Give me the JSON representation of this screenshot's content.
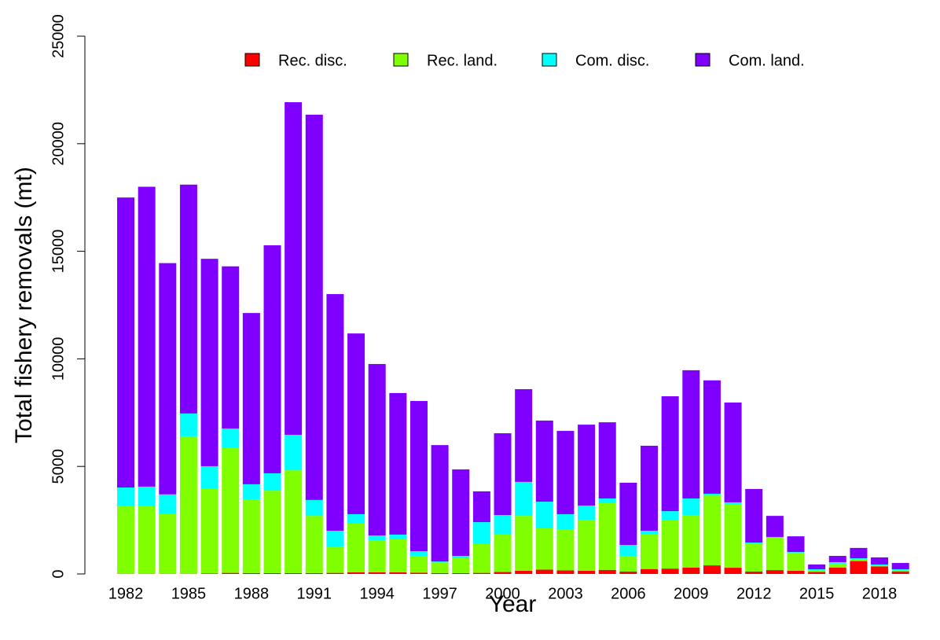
{
  "chart_data": {
    "type": "bar",
    "stacked": true,
    "xlabel": "Year",
    "ylabel": "Total fishery removals (mt)",
    "categories": [
      "1982",
      null,
      null,
      "1985",
      null,
      null,
      "1988",
      null,
      null,
      "1991",
      null,
      null,
      "1994",
      null,
      null,
      "1997",
      null,
      null,
      "2000",
      null,
      null,
      "2003",
      null,
      null,
      "2006",
      null,
      null,
      "2009",
      null,
      null,
      "2012",
      null,
      null,
      "2015",
      null,
      null,
      "2018",
      null
    ],
    "series": [
      {
        "name": "Rec. disc.",
        "color": "#ff0000",
        "values": [
          10,
          10,
          10,
          10,
          20,
          50,
          40,
          40,
          40,
          40,
          50,
          80,
          80,
          80,
          60,
          40,
          40,
          50,
          90,
          150,
          200,
          170,
          150,
          190,
          110,
          230,
          250,
          300,
          400,
          290,
          110,
          180,
          150,
          100,
          300,
          600,
          350,
          120
        ]
      },
      {
        "name": "Rec. land.",
        "color": "#80ff00",
        "values": [
          3170,
          3170,
          2770,
          6390,
          3930,
          5800,
          3430,
          3830,
          4780,
          2660,
          1230,
          2260,
          1490,
          1530,
          780,
          510,
          690,
          1340,
          1740,
          2550,
          1920,
          1910,
          2370,
          3100,
          730,
          1600,
          2240,
          2440,
          3250,
          2930,
          1280,
          1500,
          840,
          80,
          180,
          90,
          50,
          60
        ]
      },
      {
        "name": "Com. disc.",
        "color": "#00ffff",
        "values": [
          840,
          880,
          920,
          1060,
          1060,
          910,
          700,
          810,
          1650,
          740,
          730,
          440,
          220,
          220,
          220,
          30,
          110,
          1020,
          910,
          1580,
          1240,
          700,
          660,
          220,
          510,
          180,
          430,
          770,
          80,
          110,
          70,
          40,
          30,
          40,
          70,
          40,
          40,
          40
        ]
      },
      {
        "name": "Com. land.",
        "color": "#8000ff",
        "values": [
          13480,
          13940,
          10750,
          10640,
          9640,
          7540,
          7960,
          10600,
          15460,
          17910,
          11000,
          8400,
          7970,
          6580,
          6980,
          5410,
          4020,
          1430,
          3800,
          4310,
          3770,
          3870,
          3760,
          3540,
          2890,
          3950,
          5340,
          5960,
          5270,
          4640,
          2490,
          980,
          730,
          220,
          290,
          480,
          330,
          290
        ]
      }
    ],
    "ylim": [
      0,
      25000
    ],
    "yticks": [
      0,
      5000,
      10000,
      15000,
      20000,
      25000
    ],
    "grid": false,
    "legend": "top"
  }
}
